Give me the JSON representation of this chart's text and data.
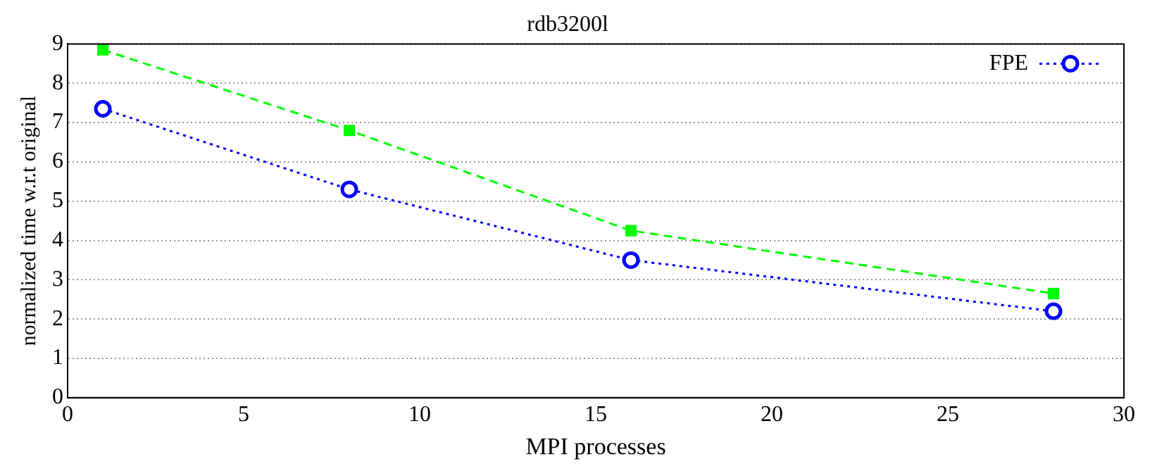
{
  "chart_data": {
    "type": "line",
    "title": "rdb3200l",
    "xlabel": "MPI processes",
    "ylabel": "normalized time w.r.t original",
    "xlim": [
      0,
      30
    ],
    "xticks": [
      0,
      5,
      10,
      15,
      20,
      25,
      30
    ],
    "ylim": [
      0,
      9
    ],
    "yticks": [
      0,
      1,
      2,
      3,
      4,
      5,
      6,
      7,
      8,
      9
    ],
    "grid": "y",
    "legend": "top right",
    "series": [
      {
        "color": "#00ff00",
        "marker": "square",
        "line_style": "dashed",
        "x": [
          1,
          8,
          16,
          28
        ],
        "values": [
          8.85,
          6.8,
          4.25,
          2.65
        ]
      },
      {
        "name": "FPE",
        "color": "#0000ff",
        "marker": "circle",
        "line_style": "dotted",
        "x": [
          1,
          8,
          16,
          28
        ],
        "values": [
          7.35,
          5.3,
          3.5,
          2.2
        ]
      }
    ]
  }
}
